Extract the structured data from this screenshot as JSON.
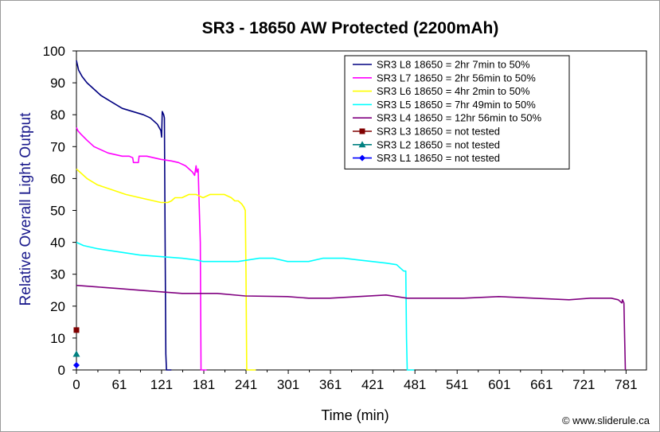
{
  "chart_data": {
    "type": "line",
    "title": "SR3 - 18650 AW Protected (2200mAh)",
    "xlabel": "Time (min)",
    "ylabel": "Relative Overall Light Output",
    "xlim": [
      0,
      810
    ],
    "ylim": [
      0,
      100
    ],
    "xticks": [
      "0",
      "61",
      "121",
      "181",
      "241",
      "301",
      "361",
      "421",
      "481",
      "541",
      "601",
      "661",
      "721",
      "781"
    ],
    "yticks": [
      "0",
      "10",
      "20",
      "30",
      "40",
      "50",
      "60",
      "70",
      "80",
      "90",
      "100"
    ],
    "legend_position": "top-right",
    "grid": false,
    "credit": "© www.sliderule.ca",
    "series": [
      {
        "name": "SR3 L8 18650 = 2hr 7min to 50%",
        "color": "#000080",
        "marker": "none",
        "points": [
          [
            0,
            97
          ],
          [
            1,
            96
          ],
          [
            3,
            94
          ],
          [
            8,
            92
          ],
          [
            15,
            90
          ],
          [
            25,
            88
          ],
          [
            35,
            86
          ],
          [
            50,
            84
          ],
          [
            65,
            82
          ],
          [
            80,
            81
          ],
          [
            95,
            80
          ],
          [
            105,
            79
          ],
          [
            115,
            77
          ],
          [
            120,
            75
          ],
          [
            121,
            73
          ],
          [
            122,
            81
          ],
          [
            124,
            80
          ],
          [
            125,
            79
          ],
          [
            126,
            40
          ],
          [
            127,
            5
          ],
          [
            128,
            0
          ],
          [
            135,
            0
          ]
        ]
      },
      {
        "name": "SR3 L7 18650 = 2hr 56min to 50%",
        "color": "#ff00ff",
        "marker": "none",
        "points": [
          [
            0,
            76
          ],
          [
            2,
            75
          ],
          [
            6,
            74
          ],
          [
            15,
            72
          ],
          [
            25,
            70
          ],
          [
            35,
            69
          ],
          [
            45,
            68
          ],
          [
            55,
            67.5
          ],
          [
            65,
            67
          ],
          [
            75,
            67
          ],
          [
            80,
            66.5
          ],
          [
            81,
            65
          ],
          [
            88,
            65
          ],
          [
            89,
            67
          ],
          [
            100,
            67
          ],
          [
            110,
            66.5
          ],
          [
            120,
            66
          ],
          [
            135,
            65.5
          ],
          [
            145,
            65
          ],
          [
            155,
            64
          ],
          [
            165,
            62
          ],
          [
            168,
            61
          ],
          [
            170,
            64
          ],
          [
            171,
            62
          ],
          [
            173,
            63
          ],
          [
            174,
            55
          ],
          [
            176,
            40
          ],
          [
            177,
            0
          ],
          [
            185,
            0
          ]
        ]
      },
      {
        "name": "SR3 L6 18650 = 4hr 2min to 50%",
        "color": "#ffff00",
        "marker": "none",
        "points": [
          [
            0,
            63
          ],
          [
            5,
            62
          ],
          [
            15,
            60
          ],
          [
            30,
            58
          ],
          [
            50,
            56.5
          ],
          [
            70,
            55
          ],
          [
            90,
            54
          ],
          [
            110,
            53
          ],
          [
            120,
            52.5
          ],
          [
            130,
            52.5
          ],
          [
            135,
            53
          ],
          [
            140,
            54
          ],
          [
            150,
            54
          ],
          [
            160,
            55
          ],
          [
            170,
            55
          ],
          [
            180,
            54
          ],
          [
            190,
            55
          ],
          [
            200,
            55
          ],
          [
            210,
            55
          ],
          [
            220,
            54
          ],
          [
            225,
            53
          ],
          [
            230,
            53
          ],
          [
            235,
            52
          ],
          [
            238,
            51
          ],
          [
            240,
            50
          ],
          [
            241,
            30
          ],
          [
            242,
            0
          ],
          [
            255,
            0
          ]
        ]
      },
      {
        "name": "SR3 L5 18650 = 7hr 49min to 50%",
        "color": "#00ffff",
        "marker": "none",
        "points": [
          [
            0,
            40
          ],
          [
            10,
            39
          ],
          [
            30,
            38
          ],
          [
            60,
            37
          ],
          [
            90,
            36
          ],
          [
            120,
            35.5
          ],
          [
            150,
            35
          ],
          [
            170,
            34.5
          ],
          [
            180,
            34
          ],
          [
            200,
            34
          ],
          [
            230,
            34
          ],
          [
            260,
            35
          ],
          [
            280,
            35
          ],
          [
            300,
            34
          ],
          [
            330,
            34
          ],
          [
            350,
            35
          ],
          [
            380,
            35
          ],
          [
            400,
            34.5
          ],
          [
            420,
            34
          ],
          [
            440,
            33.5
          ],
          [
            455,
            33
          ],
          [
            460,
            32
          ],
          [
            465,
            31
          ],
          [
            468,
            31
          ],
          [
            469,
            10
          ],
          [
            470,
            0
          ],
          [
            480,
            0
          ]
        ]
      },
      {
        "name": "SR3 L4 18650 = 12hr 56min to 50%",
        "color": "#800080",
        "marker": "none",
        "points": [
          [
            0,
            26.5
          ],
          [
            30,
            26
          ],
          [
            60,
            25.5
          ],
          [
            90,
            25
          ],
          [
            120,
            24.5
          ],
          [
            150,
            24
          ],
          [
            200,
            24
          ],
          [
            240,
            23.2
          ],
          [
            300,
            23
          ],
          [
            330,
            22.5
          ],
          [
            360,
            22.5
          ],
          [
            400,
            23
          ],
          [
            440,
            23.5
          ],
          [
            470,
            22.5
          ],
          [
            500,
            22.5
          ],
          [
            550,
            22.5
          ],
          [
            600,
            23
          ],
          [
            650,
            22.5
          ],
          [
            700,
            22
          ],
          [
            730,
            22.5
          ],
          [
            760,
            22.5
          ],
          [
            770,
            22
          ],
          [
            775,
            21
          ],
          [
            776,
            22
          ],
          [
            778,
            21
          ],
          [
            779,
            10
          ],
          [
            780,
            0
          ]
        ]
      },
      {
        "name": "SR3 L3 18650 = not tested",
        "color": "#800000",
        "marker": "square",
        "points": [
          [
            0,
            12.5
          ]
        ]
      },
      {
        "name": "SR3 L2 18650 = not tested",
        "color": "#008080",
        "marker": "triangle",
        "points": [
          [
            0,
            5
          ]
        ]
      },
      {
        "name": "SR3 L1 18650 = not tested",
        "color": "#0000ff",
        "marker": "diamond",
        "points": [
          [
            0,
            1.5
          ]
        ]
      }
    ]
  }
}
